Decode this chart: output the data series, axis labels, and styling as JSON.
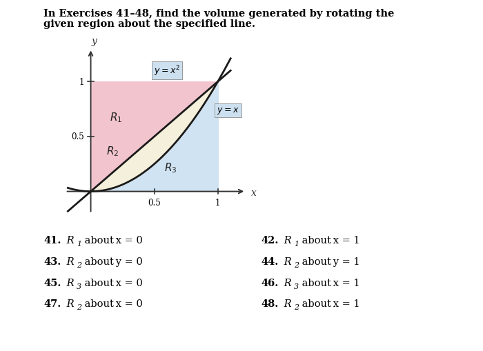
{
  "title_line1": "In Exercises 41–48, find the volume generated by rotating the",
  "title_line2": "given region about the specified line.",
  "title_fontsize": 10.5,
  "curve_color": "#1a1a1a",
  "curve_linewidth": 2.0,
  "R1_color": "#f2c4ce",
  "R2_color": "#f5f0dc",
  "R3_color": "#c8dff0",
  "axis_color": "#333333",
  "exercises_left": [
    {
      "num": "41.",
      "ri": "R",
      "sub": "1",
      "rest": " about x = 0"
    },
    {
      "num": "43.",
      "ri": "R",
      "sub": "2",
      "rest": " about y = 0"
    },
    {
      "num": "45.",
      "ri": "R",
      "sub": "3",
      "rest": " about x = 0"
    },
    {
      "num": "47.",
      "ri": "R",
      "sub": "2",
      "rest": " about x = 0"
    }
  ],
  "exercises_right": [
    {
      "num": "42.",
      "ri": "R",
      "sub": "1",
      "rest": " about x = 1"
    },
    {
      "num": "44.",
      "ri": "R",
      "sub": "2",
      "rest": " about y = 1"
    },
    {
      "num": "46.",
      "ri": "R",
      "sub": "3",
      "rest": " about x = 1"
    },
    {
      "num": "48.",
      "ri": "R",
      "sub": "2",
      "rest": " about x = 1"
    }
  ]
}
